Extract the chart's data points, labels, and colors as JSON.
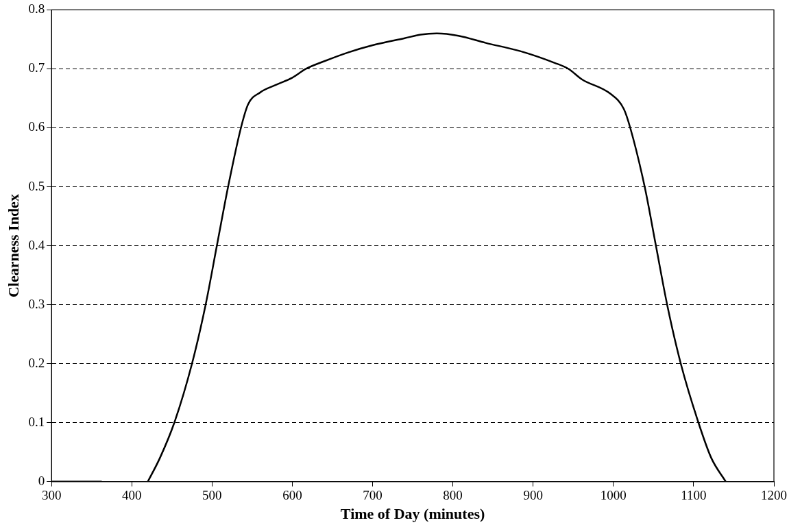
{
  "chart_data": {
    "type": "line",
    "xlabel": "Time of Day (minutes)",
    "ylabel": "Clearness Index",
    "xlim": [
      300,
      1200
    ],
    "xticks": [
      300,
      400,
      500,
      600,
      700,
      800,
      900,
      1000,
      1100,
      1200
    ],
    "ylim": [
      0,
      0.8
    ],
    "yticks": [
      0,
      0.1,
      0.2,
      0.3,
      0.4,
      0.5,
      0.6,
      0.7,
      0.8
    ],
    "grid": "y",
    "legend": false,
    "marker": "none",
    "line_style": "solid",
    "series": [
      {
        "color": "#000000",
        "x": [
          300,
          362,
          391,
          420,
          435,
          453,
          475,
          492,
          506,
          520,
          536,
          545,
          560,
          580,
          600,
          617,
          640,
          670,
          700,
          740,
          760,
          780,
          807,
          841,
          884,
          927,
          944,
          961,
          996,
          1013,
          1021,
          1039,
          1053,
          1067,
          1084,
          1106,
          1122,
          1140
        ],
        "values": [
          0,
          0,
          null,
          0,
          0.04,
          0.1,
          0.2,
          0.3,
          0.4,
          0.5,
          0.6,
          0.64,
          0.66,
          0.673,
          0.685,
          0.7,
          0.713,
          0.728,
          0.74,
          0.752,
          0.758,
          0.76,
          0.756,
          0.744,
          0.73,
          0.71,
          0.7,
          0.682,
          0.658,
          0.632,
          0.6,
          0.5,
          0.4,
          0.3,
          0.2,
          0.1,
          0.04,
          0
        ]
      }
    ]
  }
}
